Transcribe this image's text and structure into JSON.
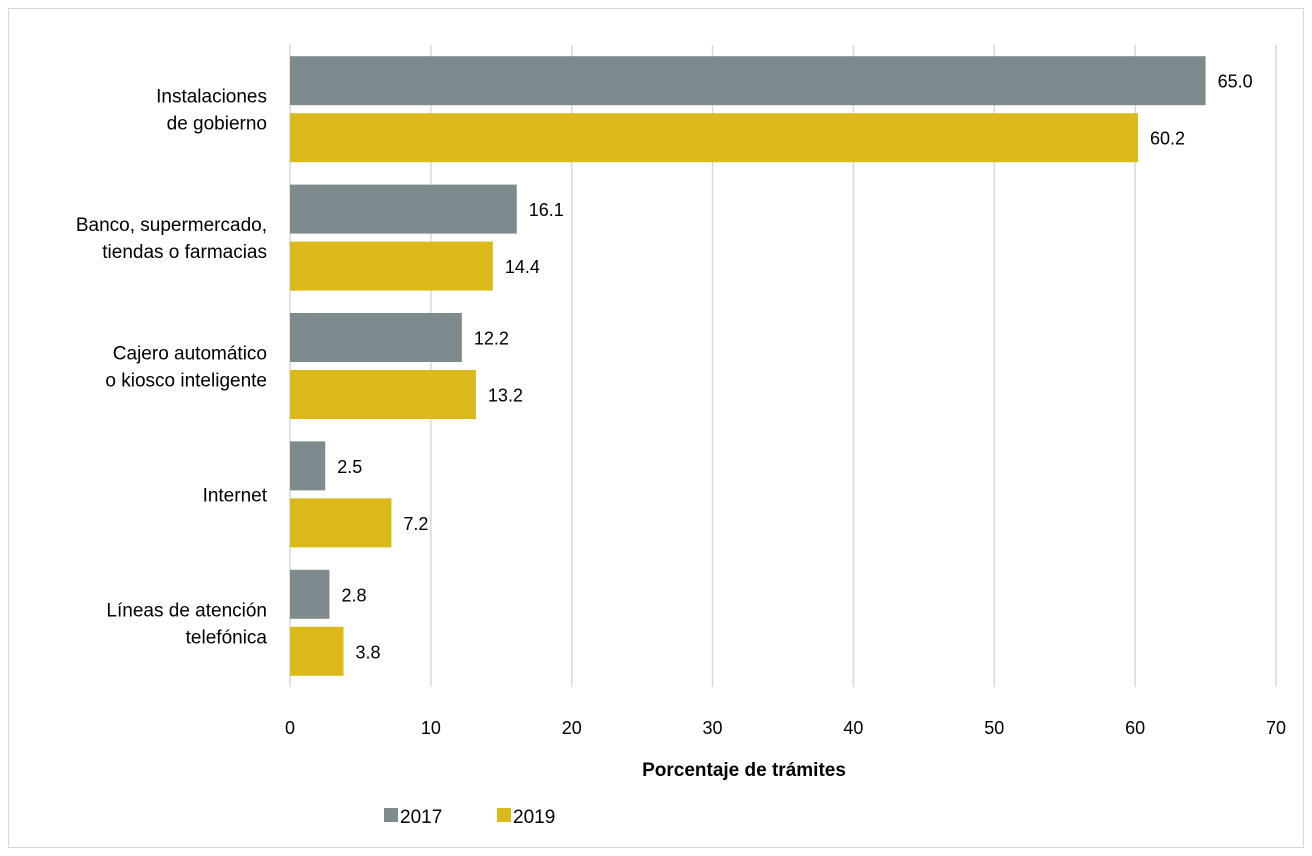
{
  "chart_data": {
    "type": "bar",
    "orientation": "horizontal",
    "categories": [
      [
        "Instalaciones",
        "de gobierno"
      ],
      [
        "Banco, supermercado,",
        "tiendas o farmacias"
      ],
      [
        "Cajero automático",
        "o kiosco inteligente"
      ],
      [
        "Internet"
      ],
      [
        "Líneas de atención",
        "telefónica"
      ]
    ],
    "series": [
      {
        "name": "2017",
        "color": "#7f8a8f",
        "values": [
          65.0,
          16.1,
          12.2,
          2.5,
          2.8
        ],
        "labels": [
          "65.0",
          "16.1",
          "12.2",
          "2.5",
          "2.8"
        ]
      },
      {
        "name": "2019",
        "color": "#dcb91a",
        "values": [
          60.2,
          14.4,
          13.2,
          7.2,
          3.8
        ],
        "labels": [
          "60.2",
          "14.4",
          "13.2",
          "7.2",
          "3.8"
        ]
      }
    ],
    "xlabel": "Porcentaje de trámites",
    "ylabel": "",
    "xlim": [
      0,
      70
    ],
    "xticks": [
      "0",
      "10",
      "20",
      "30",
      "40",
      "50",
      "60",
      "70"
    ],
    "grid": true,
    "legend_position": "bottom-left"
  }
}
